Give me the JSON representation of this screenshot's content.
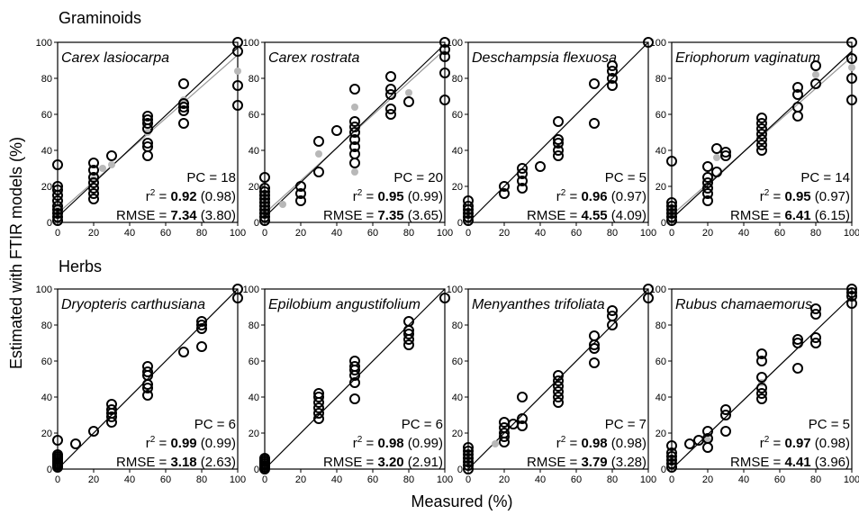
{
  "figure": {
    "group_titles": [
      "Graminoids",
      "Herbs"
    ],
    "x_axis_title": "Measured (%)",
    "y_axis_title": "Estimated with FTIR models (%)"
  },
  "chart_data": [
    {
      "type": "scatter",
      "group": "Graminoids",
      "title": "Carex lasiocarpa",
      "xlim": [
        0,
        100
      ],
      "ylim": [
        0,
        100
      ],
      "ticks": [
        0,
        20,
        40,
        60,
        80,
        100
      ],
      "pc": "PC = 18",
      "r2_bold": "0.92",
      "r2_paren": "(0.98)",
      "rmse_bold": "7.34",
      "rmse_paren": "(3.80)",
      "fit": [
        [
          0,
          3
        ],
        [
          100,
          97
        ]
      ],
      "grey_fit": [
        [
          0,
          5
        ],
        [
          100,
          93
        ]
      ],
      "points": [
        [
          0,
          1
        ],
        [
          0,
          3
        ],
        [
          0,
          5
        ],
        [
          0,
          7
        ],
        [
          0,
          9
        ],
        [
          0,
          12
        ],
        [
          0,
          15
        ],
        [
          0,
          18
        ],
        [
          0,
          20
        ],
        [
          0,
          32
        ],
        [
          20,
          13
        ],
        [
          20,
          16
        ],
        [
          20,
          19
        ],
        [
          20,
          22
        ],
        [
          20,
          25
        ],
        [
          20,
          29
        ],
        [
          20,
          33
        ],
        [
          30,
          37
        ],
        [
          50,
          37
        ],
        [
          50,
          42
        ],
        [
          50,
          44
        ],
        [
          50,
          52
        ],
        [
          50,
          55
        ],
        [
          50,
          57
        ],
        [
          50,
          59
        ],
        [
          70,
          55
        ],
        [
          70,
          62
        ],
        [
          70,
          64
        ],
        [
          70,
          66
        ],
        [
          70,
          77
        ],
        [
          100,
          65
        ],
        [
          100,
          76
        ],
        [
          100,
          95
        ],
        [
          100,
          100
        ]
      ],
      "grey_points": [
        [
          0,
          4
        ],
        [
          0,
          8
        ],
        [
          20,
          24
        ],
        [
          25,
          30
        ],
        [
          30,
          32
        ],
        [
          50,
          50
        ],
        [
          70,
          68
        ],
        [
          100,
          84
        ]
      ]
    },
    {
      "type": "scatter",
      "group": "Graminoids",
      "title": "Carex rostrata",
      "xlim": [
        0,
        100
      ],
      "ylim": [
        0,
        100
      ],
      "ticks": [
        0,
        20,
        40,
        60,
        80,
        100
      ],
      "pc": "PC = 20",
      "r2_bold": "0.95",
      "r2_paren": "(0.99)",
      "rmse_bold": "7.35",
      "rmse_paren": "(3.65)",
      "fit": [
        [
          0,
          3
        ],
        [
          100,
          99
        ]
      ],
      "grey_fit": [
        [
          0,
          5
        ],
        [
          100,
          96
        ]
      ],
      "points": [
        [
          0,
          1
        ],
        [
          0,
          3
        ],
        [
          0,
          5
        ],
        [
          0,
          7
        ],
        [
          0,
          9
        ],
        [
          0,
          11
        ],
        [
          0,
          13
        ],
        [
          0,
          15
        ],
        [
          0,
          17
        ],
        [
          0,
          19
        ],
        [
          0,
          25
        ],
        [
          20,
          12
        ],
        [
          20,
          16
        ],
        [
          20,
          20
        ],
        [
          30,
          28
        ],
        [
          30,
          45
        ],
        [
          40,
          51
        ],
        [
          50,
          33
        ],
        [
          50,
          38
        ],
        [
          50,
          42
        ],
        [
          50,
          46
        ],
        [
          50,
          50
        ],
        [
          50,
          53
        ],
        [
          50,
          56
        ],
        [
          50,
          74
        ],
        [
          70,
          60
        ],
        [
          70,
          63
        ],
        [
          70,
          71
        ],
        [
          70,
          74
        ],
        [
          70,
          81
        ],
        [
          80,
          67
        ],
        [
          100,
          68
        ],
        [
          100,
          83
        ],
        [
          100,
          92
        ],
        [
          100,
          96
        ],
        [
          100,
          100
        ]
      ],
      "grey_points": [
        [
          0,
          6
        ],
        [
          10,
          10
        ],
        [
          30,
          38
        ],
        [
          50,
          64
        ],
        [
          50,
          28
        ],
        [
          80,
          72
        ]
      ]
    },
    {
      "type": "scatter",
      "group": "Graminoids",
      "title": "Deschampsia flexuosa",
      "xlim": [
        0,
        100
      ],
      "ylim": [
        0,
        100
      ],
      "ticks": [
        0,
        20,
        40,
        60,
        80,
        100
      ],
      "pc": "PC = 5",
      "r2_bold": "0.96",
      "r2_paren": "(0.97)",
      "rmse_bold": "4.55",
      "rmse_paren": "(4.09)",
      "fit": [
        [
          0,
          0
        ],
        [
          100,
          100
        ]
      ],
      "grey_fit": null,
      "points": [
        [
          0,
          1
        ],
        [
          0,
          3
        ],
        [
          0,
          5
        ],
        [
          0,
          7
        ],
        [
          0,
          9
        ],
        [
          0,
          12
        ],
        [
          20,
          16
        ],
        [
          20,
          20
        ],
        [
          30,
          19
        ],
        [
          30,
          23
        ],
        [
          30,
          27
        ],
        [
          30,
          30
        ],
        [
          40,
          31
        ],
        [
          50,
          37
        ],
        [
          50,
          40
        ],
        [
          50,
          44
        ],
        [
          50,
          46
        ],
        [
          50,
          56
        ],
        [
          70,
          55
        ],
        [
          70,
          77
        ],
        [
          80,
          76
        ],
        [
          80,
          80
        ],
        [
          80,
          84
        ],
        [
          80,
          87
        ],
        [
          100,
          100
        ]
      ],
      "grey_points": []
    },
    {
      "type": "scatter",
      "group": "Graminoids",
      "title": "Eriophorum vaginatum",
      "xlim": [
        0,
        100
      ],
      "ylim": [
        0,
        100
      ],
      "ticks": [
        0,
        20,
        40,
        60,
        80,
        100
      ],
      "pc": "PC = 14",
      "r2_bold": "0.95",
      "r2_paren": "(0.97)",
      "rmse_bold": "6.41",
      "rmse_paren": "(6.15)",
      "fit": [
        [
          0,
          2
        ],
        [
          100,
          95
        ]
      ],
      "grey_fit": [
        [
          0,
          4
        ],
        [
          100,
          92
        ]
      ],
      "points": [
        [
          0,
          1
        ],
        [
          0,
          3
        ],
        [
          0,
          5
        ],
        [
          0,
          7
        ],
        [
          0,
          9
        ],
        [
          0,
          11
        ],
        [
          0,
          34
        ],
        [
          20,
          12
        ],
        [
          20,
          16
        ],
        [
          20,
          19
        ],
        [
          20,
          22
        ],
        [
          20,
          25
        ],
        [
          20,
          31
        ],
        [
          25,
          28
        ],
        [
          25,
          41
        ],
        [
          30,
          37
        ],
        [
          30,
          39
        ],
        [
          50,
          40
        ],
        [
          50,
          43
        ],
        [
          50,
          46
        ],
        [
          50,
          49
        ],
        [
          50,
          52
        ],
        [
          50,
          55
        ],
        [
          50,
          58
        ],
        [
          70,
          59
        ],
        [
          70,
          64
        ],
        [
          70,
          71
        ],
        [
          70,
          75
        ],
        [
          80,
          77
        ],
        [
          80,
          87
        ],
        [
          100,
          68
        ],
        [
          100,
          80
        ],
        [
          100,
          91
        ],
        [
          100,
          100
        ]
      ],
      "grey_points": [
        [
          0,
          5
        ],
        [
          25,
          36
        ],
        [
          80,
          82
        ],
        [
          100,
          86
        ]
      ]
    },
    {
      "type": "scatter",
      "group": "Herbs",
      "title": "Dryopteris carthusiana",
      "xlim": [
        0,
        100
      ],
      "ylim": [
        0,
        100
      ],
      "ticks": [
        0,
        20,
        40,
        60,
        80,
        100
      ],
      "pc": "PC = 6",
      "r2_bold": "0.99",
      "r2_paren": "(0.99)",
      "rmse_bold": "3.18",
      "rmse_paren": "(2.63)",
      "fit": [
        [
          0,
          0
        ],
        [
          100,
          100
        ]
      ],
      "grey_fit": null,
      "points": [
        [
          0,
          1
        ],
        [
          0,
          2
        ],
        [
          0,
          3
        ],
        [
          0,
          4
        ],
        [
          0,
          5
        ],
        [
          0,
          6
        ],
        [
          0,
          7
        ],
        [
          0,
          8
        ],
        [
          0,
          16
        ],
        [
          10,
          14
        ],
        [
          20,
          21
        ],
        [
          30,
          26
        ],
        [
          30,
          29
        ],
        [
          30,
          31
        ],
        [
          30,
          33
        ],
        [
          30,
          36
        ],
        [
          50,
          41
        ],
        [
          50,
          45
        ],
        [
          50,
          47
        ],
        [
          50,
          52
        ],
        [
          50,
          54
        ],
        [
          50,
          57
        ],
        [
          70,
          65
        ],
        [
          80,
          68
        ],
        [
          80,
          78
        ],
        [
          80,
          80
        ],
        [
          80,
          82
        ],
        [
          100,
          95
        ],
        [
          100,
          100
        ]
      ],
      "grey_points": []
    },
    {
      "type": "scatter",
      "group": "Herbs",
      "title": "Epilobium angustifolium",
      "xlim": [
        0,
        100
      ],
      "ylim": [
        0,
        100
      ],
      "ticks": [
        0,
        20,
        40,
        60,
        80,
        100
      ],
      "pc": "PC = 6",
      "r2_bold": "0.98",
      "r2_paren": "(0.99)",
      "rmse_bold": "3.20",
      "rmse_paren": "(2.91)",
      "fit": [
        [
          0,
          0
        ],
        [
          100,
          100
        ]
      ],
      "grey_fit": null,
      "points": [
        [
          0,
          0
        ],
        [
          0,
          1
        ],
        [
          0,
          2
        ],
        [
          0,
          3
        ],
        [
          0,
          4
        ],
        [
          0,
          5
        ],
        [
          0,
          6
        ],
        [
          30,
          28
        ],
        [
          30,
          31
        ],
        [
          30,
          34
        ],
        [
          30,
          37
        ],
        [
          30,
          40
        ],
        [
          30,
          42
        ],
        [
          50,
          39
        ],
        [
          50,
          48
        ],
        [
          50,
          52
        ],
        [
          50,
          55
        ],
        [
          50,
          57
        ],
        [
          50,
          60
        ],
        [
          80,
          69
        ],
        [
          80,
          72
        ],
        [
          80,
          75
        ],
        [
          80,
          77
        ],
        [
          80,
          82
        ],
        [
          100,
          95
        ]
      ],
      "grey_points": []
    },
    {
      "type": "scatter",
      "group": "Herbs",
      "title": "Menyanthes trifoliata",
      "xlim": [
        0,
        100
      ],
      "ylim": [
        0,
        100
      ],
      "ticks": [
        0,
        20,
        40,
        60,
        80,
        100
      ],
      "pc": "PC = 7",
      "r2_bold": "0.98",
      "r2_paren": "(0.98)",
      "rmse_bold": "3.79",
      "rmse_paren": "(3.28)",
      "fit": [
        [
          0,
          0
        ],
        [
          100,
          100
        ]
      ],
      "grey_fit": null,
      "points": [
        [
          0,
          0
        ],
        [
          0,
          2
        ],
        [
          0,
          4
        ],
        [
          0,
          6
        ],
        [
          0,
          8
        ],
        [
          0,
          10
        ],
        [
          0,
          12
        ],
        [
          20,
          15
        ],
        [
          20,
          18
        ],
        [
          20,
          20
        ],
        [
          20,
          23
        ],
        [
          20,
          26
        ],
        [
          25,
          25
        ],
        [
          30,
          24
        ],
        [
          30,
          28
        ],
        [
          30,
          40
        ],
        [
          50,
          37
        ],
        [
          50,
          40
        ],
        [
          50,
          43
        ],
        [
          50,
          46
        ],
        [
          50,
          49
        ],
        [
          50,
          52
        ],
        [
          70,
          59
        ],
        [
          70,
          67
        ],
        [
          70,
          69
        ],
        [
          70,
          74
        ],
        [
          80,
          80
        ],
        [
          80,
          85
        ],
        [
          80,
          88
        ],
        [
          100,
          95
        ],
        [
          100,
          100
        ]
      ],
      "grey_points": [
        [
          15,
          14
        ]
      ]
    },
    {
      "type": "scatter",
      "group": "Herbs",
      "title": "Rubus chamaemorus",
      "xlim": [
        0,
        100
      ],
      "ylim": [
        0,
        100
      ],
      "ticks": [
        0,
        20,
        40,
        60,
        80,
        100
      ],
      "pc": "PC = 5",
      "r2_bold": "0.97",
      "r2_paren": "(0.98)",
      "rmse_bold": "4.41",
      "rmse_paren": "(3.96)",
      "fit": [
        [
          0,
          0
        ],
        [
          100,
          96
        ]
      ],
      "grey_fit": null,
      "points": [
        [
          0,
          1
        ],
        [
          0,
          3
        ],
        [
          0,
          5
        ],
        [
          0,
          7
        ],
        [
          0,
          9
        ],
        [
          0,
          13
        ],
        [
          10,
          14
        ],
        [
          15,
          16
        ],
        [
          20,
          12
        ],
        [
          20,
          17
        ],
        [
          20,
          21
        ],
        [
          30,
          21
        ],
        [
          30,
          30
        ],
        [
          30,
          33
        ],
        [
          50,
          39
        ],
        [
          50,
          42
        ],
        [
          50,
          45
        ],
        [
          50,
          51
        ],
        [
          50,
          60
        ],
        [
          50,
          64
        ],
        [
          70,
          56
        ],
        [
          70,
          70
        ],
        [
          70,
          72
        ],
        [
          80,
          70
        ],
        [
          80,
          73
        ],
        [
          80,
          86
        ],
        [
          80,
          89
        ],
        [
          100,
          92
        ],
        [
          100,
          96
        ],
        [
          100,
          98
        ],
        [
          100,
          100
        ]
      ],
      "grey_points": [
        [
          20,
          16
        ],
        [
          50,
          48
        ]
      ]
    }
  ]
}
